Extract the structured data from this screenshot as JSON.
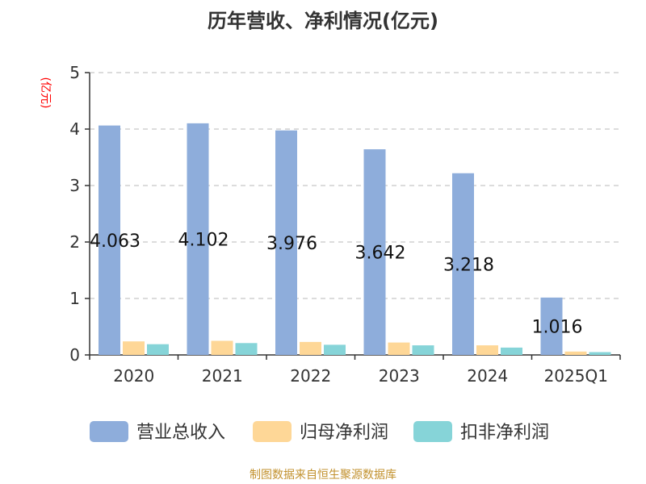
{
  "footer": "制图数据来自恒生聚源数据库",
  "chart_data": {
    "type": "bar",
    "title": "历年营收、净利情况(亿元)",
    "ylabel": "(亿元)",
    "xlabel": "",
    "ylim": [
      0,
      5
    ],
    "yticks": [
      0,
      1,
      2,
      3,
      4,
      5
    ],
    "grid": true,
    "legend_position": "bottom",
    "categories": [
      "2020",
      "2021",
      "2022",
      "2023",
      "2024",
      "2025Q1"
    ],
    "series": [
      {
        "name": "营业总收入",
        "color": "#8eaddb",
        "values": [
          4.063,
          4.102,
          3.976,
          3.642,
          3.218,
          1.016
        ],
        "labels": [
          "4.063",
          "4.102",
          "3.976",
          "3.642",
          "3.218",
          "1.016"
        ]
      },
      {
        "name": "归母净利润",
        "color": "#fed797",
        "values": [
          0.24,
          0.25,
          0.23,
          0.22,
          0.17,
          0.06
        ]
      },
      {
        "name": "扣非净利润",
        "color": "#86d4d8",
        "values": [
          0.19,
          0.21,
          0.18,
          0.17,
          0.13,
          0.05
        ]
      }
    ]
  }
}
